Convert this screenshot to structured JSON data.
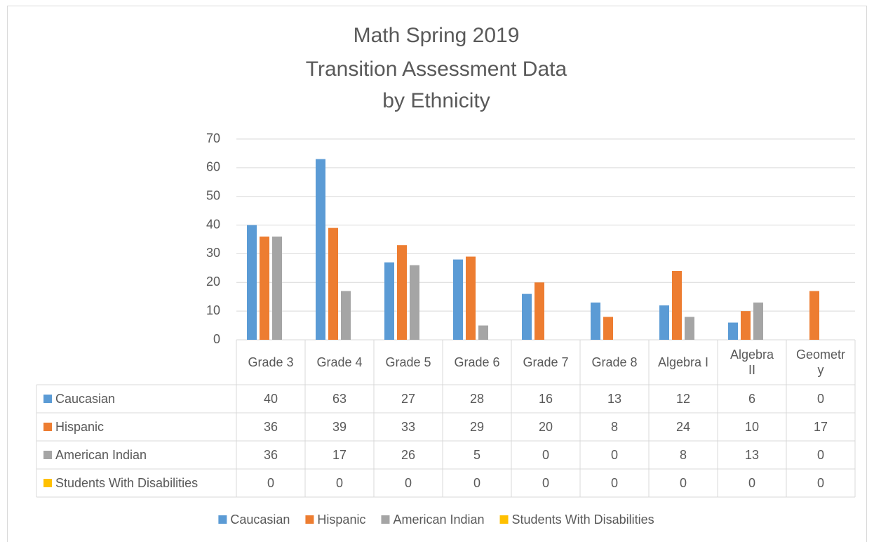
{
  "chart_data": {
    "type": "bar",
    "title": [
      "Math Spring 2019",
      "Transition Assessment Data",
      "by Ethnicity"
    ],
    "categories": [
      "Grade 3",
      "Grade 4",
      "Grade 5",
      "Grade 6",
      "Grade 7",
      "Grade 8",
      "Algebra I",
      "Algebra II",
      "Geometry"
    ],
    "series": [
      {
        "name": "Caucasian",
        "color": "#5b9bd5",
        "values": [
          40,
          63,
          27,
          28,
          16,
          13,
          12,
          6,
          0
        ]
      },
      {
        "name": "Hispanic",
        "color": "#ed7d31",
        "values": [
          36,
          39,
          33,
          29,
          20,
          8,
          24,
          10,
          17
        ]
      },
      {
        "name": "American Indian",
        "color": "#a5a5a5",
        "values": [
          36,
          17,
          26,
          5,
          0,
          0,
          8,
          13,
          0
        ]
      },
      {
        "name": "Students With Disabilities",
        "color": "#ffc000",
        "values": [
          0,
          0,
          0,
          0,
          0,
          0,
          0,
          0,
          0
        ]
      }
    ],
    "ylim": [
      0,
      70
    ],
    "yticks": [
      0,
      10,
      20,
      30,
      40,
      50,
      60,
      70
    ],
    "grid": true,
    "legend": "bottom",
    "data_table": true
  }
}
